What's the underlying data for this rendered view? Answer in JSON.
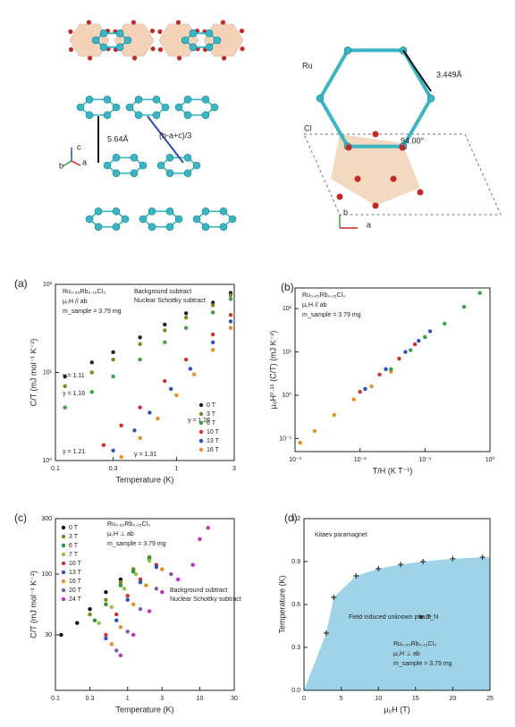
{
  "structure": {
    "labels": [
      "5.64Å",
      "(b-a+c)/3",
      "c",
      "b",
      "a",
      "Ru",
      "Cl",
      "3.449Å",
      "94.00°",
      "b",
      "a"
    ]
  },
  "chart_data": [
    {
      "type": "scatter",
      "label": "(a)",
      "xlabel": "Temperature (K)",
      "ylabel": "C/T (mJ mol⁻¹ K⁻²)",
      "xlog": true,
      "ylog": true,
      "xlim": [
        0.1,
        3
      ],
      "ylim": [
        1,
        100
      ],
      "xticks": [
        0.1,
        0.3,
        1,
        3
      ],
      "yticks": [
        {
          "value": 1,
          "label": "10⁰"
        },
        {
          "value": 10,
          "label": "10¹"
        },
        {
          "value": 100,
          "label": "10²"
        }
      ],
      "notes": [
        "Ru₀.₈₅Rb₀.₁₅Cl₃",
        "μ₀H // ab",
        "m_sample = 3.79 mg",
        "Background subtract",
        "Nuclear Schottky subtract",
        "γ = 1.11",
        "γ = 1.16",
        "γ = 1.21",
        "γ = 1.26",
        "γ = 1.31"
      ],
      "legend": "lower right",
      "series": [
        {
          "name": "0 T",
          "color": "#222222",
          "x": [
            0.12,
            0.2,
            0.3,
            0.5,
            0.8,
            1.2,
            2,
            2.8
          ],
          "values": [
            9,
            13,
            17,
            25,
            35,
            47,
            62,
            80
          ]
        },
        {
          "name": "3 T",
          "color": "#7a8a1a",
          "x": [
            0.12,
            0.2,
            0.3,
            0.5,
            0.8,
            1.2,
            2,
            2.8
          ],
          "values": [
            7,
            10,
            14,
            21,
            30,
            42,
            58,
            75
          ]
        },
        {
          "name": "6 T",
          "color": "#3aa040",
          "x": [
            0.12,
            0.2,
            0.3,
            0.5,
            0.8,
            1.2,
            2,
            2.8
          ],
          "values": [
            4,
            6,
            9,
            14,
            22,
            32,
            48,
            68
          ]
        },
        {
          "name": "10 T",
          "color": "#d03030",
          "x": [
            0.25,
            0.35,
            0.5,
            0.8,
            1.2,
            2,
            2.8
          ],
          "values": [
            1.5,
            2.5,
            4,
            8,
            14,
            27,
            45
          ]
        },
        {
          "name": "13 T",
          "color": "#3050c0",
          "x": [
            0.3,
            0.45,
            0.6,
            0.9,
            1.3,
            2,
            2.8
          ],
          "values": [
            1.3,
            2.2,
            3.5,
            6.5,
            11,
            22,
            38
          ]
        },
        {
          "name": "16 T",
          "color": "#e89020",
          "x": [
            0.35,
            0.5,
            0.7,
            1,
            1.4,
            2,
            2.8
          ],
          "values": [
            1.1,
            1.8,
            3,
            5.5,
            9.5,
            18,
            32
          ]
        }
      ]
    },
    {
      "type": "scatter",
      "label": "(b)",
      "xlabel": "T/H (K T⁻¹)",
      "ylabel": "μ₀H⁰·¹¹ (C/T) (mJ K⁻²)",
      "xlog": true,
      "ylog": true,
      "xlim": [
        0.001,
        1
      ],
      "ylim": [
        0.05,
        300
      ],
      "xticks": [
        {
          "value": 0.001,
          "label": "10⁻³"
        },
        {
          "value": 0.01,
          "label": "10⁻²"
        },
        {
          "value": 0.1,
          "label": "10⁻¹"
        },
        {
          "value": 1,
          "label": "10⁰"
        }
      ],
      "yticks": [
        {
          "value": 0.1,
          "label": "10⁻¹"
        },
        {
          "value": 1,
          "label": "10⁰"
        },
        {
          "value": 10,
          "label": "10¹"
        },
        {
          "value": 100,
          "label": "10²"
        }
      ],
      "notes": [
        "Ru₀.₈₅Rb₀.₁₅Cl₃",
        "μ₀H // ab",
        "m_sample = 3.79 mg"
      ],
      "series": [
        {
          "color": "#e89020",
          "x": [
            0.0012,
            0.002,
            0.004,
            0.008,
            0.015,
            0.03
          ],
          "values": [
            0.08,
            0.15,
            0.35,
            0.8,
            1.6,
            3.5
          ]
        },
        {
          "color": "#d03030",
          "x": [
            0.01,
            0.02,
            0.04,
            0.07,
            0.1
          ],
          "values": [
            1.2,
            3,
            7,
            15,
            22
          ]
        },
        {
          "color": "#3050c0",
          "x": [
            0.012,
            0.025,
            0.05,
            0.08,
            0.12
          ],
          "values": [
            1.4,
            4,
            10,
            18,
            30
          ]
        },
        {
          "color": "#3aa040",
          "x": [
            0.03,
            0.06,
            0.1,
            0.2,
            0.4,
            0.7
          ],
          "values": [
            4,
            11,
            22,
            45,
            110,
            230
          ]
        }
      ]
    },
    {
      "type": "scatter",
      "label": "(c)",
      "xlabel": "Temperature (K)",
      "ylabel": "C/T (mJ mol⁻¹ K⁻²)",
      "xlog": true,
      "ylog": true,
      "xlim": [
        0.1,
        30
      ],
      "ylim": [
        10,
        300
      ],
      "xticks": [
        0.1,
        0.3,
        1,
        3,
        10,
        30
      ],
      "yticks": [
        30,
        100,
        300
      ],
      "notes": [
        "Ru₀.₈₅Rb₀.₁₅Cl₃",
        "μ₀H ⊥ ab",
        "m_sample = 3.79 mg",
        "Background subtract",
        "Nuclear Schottky subtract"
      ],
      "legend": "upper left",
      "series": [
        {
          "name": "0 T",
          "color": "#111111",
          "x": [
            0.12,
            0.2,
            0.3,
            0.5,
            0.8,
            1.2,
            2
          ],
          "values": [
            30,
            38,
            50,
            70,
            90,
            110,
            140
          ]
        },
        {
          "name": "3 T",
          "color": "#7a8a1a",
          "x": [
            0.3,
            0.5,
            0.8,
            1.2,
            2
          ],
          "values": [
            45,
            60,
            85,
            110,
            140
          ]
        },
        {
          "name": "6 T",
          "color": "#2f8f3a",
          "x": [
            0.35,
            0.5,
            0.8,
            1.2,
            2
          ],
          "values": [
            40,
            55,
            80,
            105,
            135
          ]
        },
        {
          "name": "7 T",
          "color": "#8cc63f",
          "x": [
            0.4,
            0.6,
            0.9,
            1.3,
            2
          ],
          "values": [
            38,
            52,
            75,
            100,
            130
          ]
        },
        {
          "name": "10 T",
          "color": "#d03030",
          "x": [
            0.5,
            0.7,
            1,
            1.5,
            2.5
          ],
          "values": [
            30,
            45,
            65,
            90,
            120
          ]
        },
        {
          "name": "13 T",
          "color": "#3050c0",
          "x": [
            0.5,
            0.7,
            1,
            1.5,
            2.5
          ],
          "values": [
            28,
            40,
            60,
            85,
            115
          ]
        },
        {
          "name": "16 T",
          "color": "#e89020",
          "x": [
            0.6,
            0.8,
            1.2,
            1.8,
            3
          ],
          "values": [
            25,
            35,
            55,
            80,
            110
          ]
        },
        {
          "name": "20 T",
          "color": "#7a5ca8",
          "x": [
            0.7,
            1,
            1.5,
            2.5,
            4
          ],
          "values": [
            22,
            32,
            50,
            75,
            100
          ]
        },
        {
          "name": "24 T",
          "color": "#c030c0",
          "x": [
            0.8,
            1.2,
            2,
            3,
            5,
            8,
            10,
            13
          ],
          "values": [
            20,
            30,
            48,
            70,
            90,
            120,
            200,
            250
          ]
        }
      ]
    },
    {
      "type": "phase",
      "label": "(d)",
      "xlabel": "μ₀H (T)",
      "ylabel": "Temperature (K)",
      "xlim": [
        0,
        25
      ],
      "ylim": [
        0,
        1.2
      ],
      "xticks": [
        0,
        5,
        10,
        15,
        20,
        25
      ],
      "yticks": [
        {
          "value": 0,
          "label": "0.0"
        },
        0.3,
        0.6,
        0.9,
        1.2
      ],
      "notes": [
        "Kitaev paramagnet",
        "Field induced unknown phase",
        "Ru₀.₈₅Rb₀.₁₅Cl₃",
        "μ₀H ⊥ ab",
        "m_sample = 3.79 mg"
      ],
      "legend": "center right",
      "area_color": "#9fd4e8",
      "series": [
        {
          "name": "T_N",
          "color": "#333333",
          "x": [
            3,
            4,
            7,
            10,
            13,
            16,
            20,
            24
          ],
          "values": [
            0.4,
            0.65,
            0.8,
            0.85,
            0.88,
            0.9,
            0.92,
            0.93
          ]
        }
      ]
    }
  ]
}
